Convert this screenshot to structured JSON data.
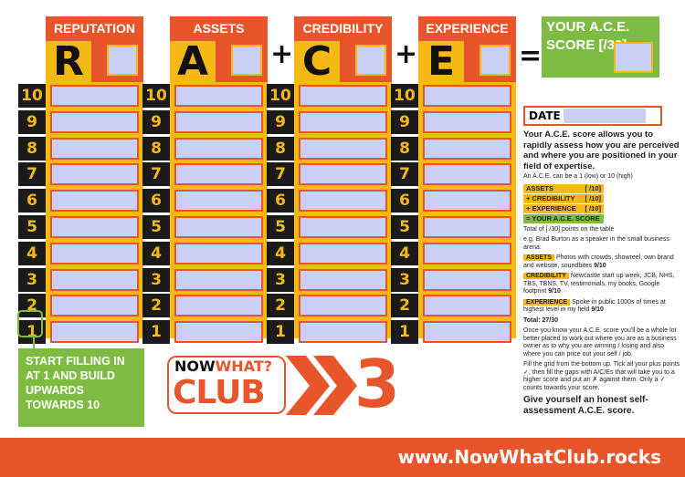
{
  "columns": [
    {
      "title": "REPUTATION",
      "letter": "R"
    },
    {
      "title": "ASSETS",
      "letter": "A"
    },
    {
      "title": "CREDIBILITY",
      "letter": "C"
    },
    {
      "title": "EXPERIENCE",
      "letter": "E"
    }
  ],
  "operators": {
    "plus": "+",
    "equals": "="
  },
  "rows": [
    10,
    9,
    8,
    7,
    6,
    5,
    4,
    3,
    2,
    1
  ],
  "score": {
    "title": "YOUR A.C.E. SCORE [/30]"
  },
  "callout": "START FILLING IN AT 1 AND BUILD UPWARDS TOWARDS 10",
  "logo": {
    "now": "NOW",
    "what": "WHAT?",
    "club": "CLUB",
    "number": "3"
  },
  "sidebar": {
    "date_label": "DATE",
    "intro": "Your A.C.E. score allows you to rapidly assess how you are perceived and where you are positioned in your field of expertise.",
    "range": "An A.C.E. can be a 1 (low) or 10 (high)",
    "table": [
      {
        "label": "ASSETS",
        "value": "[ /10]"
      },
      {
        "label": "+ CREDIBILITY",
        "value": "[ /10]"
      },
      {
        "label": "+ EXPERIENCE",
        "value": "[ /10]"
      },
      {
        "label": "= YOUR A.C.E. SCORE",
        "value": ""
      }
    ],
    "total_line": "Total of [ /30] points on the table",
    "example_intro": "e.g. Brad Burton as a speaker in the small business arena:",
    "examples": [
      {
        "tag": "ASSETS",
        "text": "Photos with crowds, showreel, own brand and website, soundbites ",
        "score": "9/10"
      },
      {
        "tag": "CREDIBILITY",
        "text": "Newcastle start up week, JCB, NHS, TBS, TBNS, TV, testimonials, my books, Google footprint ",
        "score": "9/10"
      },
      {
        "tag": "EXPERIENCE",
        "text": "Spoke in public 1000s of times at highest level in my field ",
        "score": "9/10"
      }
    ],
    "total": "Total: 27/30",
    "para1": "Once you know your A.C.E. score you'll be a whole lot better placed to work out where you are as a business owner as to why you are winning / losing and also where you can price out your self / job.",
    "para2": "Fill the grid from the bottom up. Tick all your plus points ✓, then fill the gaps with A/C/Es that will take you to a higher score and put an ✗ against them. Only a ✓ counts towards your score.",
    "closing": "Give yourself an honest self-assessment A.C.E. score."
  },
  "footer": {
    "url": "www.NowWhatClub.rocks"
  },
  "colors": {
    "orange": "#e8552a",
    "yellow": "#f5b915",
    "green": "#7dbb42",
    "blue": "#c9cff5",
    "black": "#1b1b1b"
  }
}
